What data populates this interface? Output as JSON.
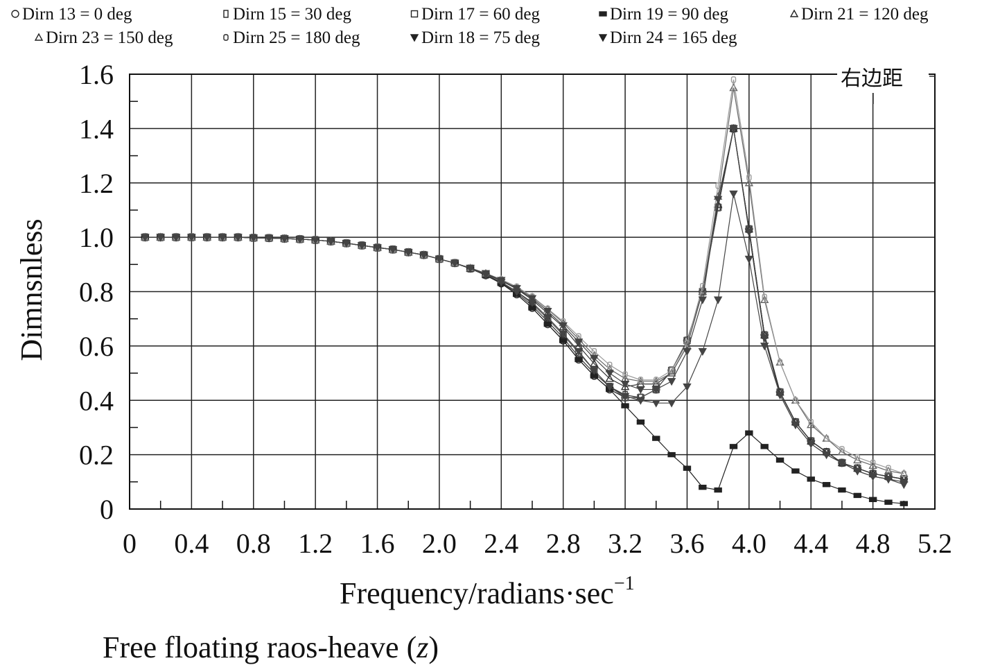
{
  "chart_data": {
    "type": "line",
    "ylabel": "Dimnsnless",
    "xlabel": {
      "main": "Frequency/radians·sec",
      "sup": "−1"
    },
    "caption": {
      "prefix": "Free floating raos-heave (",
      "italic": "z",
      "suffix": ")"
    },
    "annotation": "右边距",
    "xlim": [
      0,
      5.2
    ],
    "ylim": [
      0,
      1.6
    ],
    "x_ticks": [
      "0",
      "0.4",
      "0.8",
      "1.2",
      "1.6",
      "2.0",
      "2.4",
      "2.8",
      "3.2",
      "3.6",
      "4.0",
      "4.4",
      "4.8",
      "5.2"
    ],
    "y_ticks": [
      "0",
      "0.2",
      "0.4",
      "0.6",
      "0.8",
      "1.0",
      "1.2",
      "1.4",
      "1.6"
    ],
    "grid": true,
    "legend_position": "top",
    "x": [
      0.1,
      0.2,
      0.3,
      0.4,
      0.5,
      0.6,
      0.7,
      0.8,
      0.9,
      1.0,
      1.1,
      1.2,
      1.3,
      1.4,
      1.5,
      1.6,
      1.7,
      1.8,
      1.9,
      2.0,
      2.1,
      2.2,
      2.3,
      2.4,
      2.5,
      2.6,
      2.7,
      2.8,
      2.9,
      3.0,
      3.1,
      3.2,
      3.3,
      3.4,
      3.5,
      3.6,
      3.7,
      3.8,
      3.9,
      4.0,
      4.1,
      4.2,
      4.3,
      4.4,
      4.5,
      4.6,
      4.7,
      4.8,
      4.9,
      5.0
    ],
    "series": [
      {
        "name": "Dirn 13 = 0 deg",
        "marker": "circle",
        "color": "#222222",
        "values": [
          1.0,
          1.0,
          1.0,
          1.0,
          1.0,
          1.0,
          1.0,
          0.998,
          0.997,
          0.995,
          0.993,
          0.99,
          0.985,
          0.978,
          0.97,
          0.962,
          0.955,
          0.945,
          0.935,
          0.92,
          0.905,
          0.885,
          0.86,
          0.83,
          0.79,
          0.74,
          0.68,
          0.62,
          0.55,
          0.49,
          0.44,
          0.41,
          0.41,
          0.44,
          0.51,
          0.62,
          0.8,
          1.11,
          1.4,
          1.03,
          0.64,
          0.43,
          0.32,
          0.25,
          0.21,
          0.17,
          0.15,
          0.13,
          0.12,
          0.11
        ]
      },
      {
        "name": "Dirn 15 = 30 deg",
        "marker": "tallrect",
        "color": "#333333",
        "values": [
          1.0,
          1.0,
          1.0,
          1.0,
          1.0,
          1.0,
          1.0,
          0.998,
          0.997,
          0.995,
          0.993,
          0.99,
          0.985,
          0.978,
          0.97,
          0.962,
          0.955,
          0.945,
          0.935,
          0.92,
          0.905,
          0.885,
          0.862,
          0.833,
          0.795,
          0.748,
          0.69,
          0.63,
          0.56,
          0.5,
          0.45,
          0.42,
          0.41,
          0.44,
          0.51,
          0.62,
          0.8,
          1.11,
          1.4,
          1.03,
          0.64,
          0.43,
          0.32,
          0.25,
          0.21,
          0.17,
          0.15,
          0.13,
          0.12,
          0.11
        ]
      },
      {
        "name": "Dirn 17 = 60 deg",
        "marker": "square",
        "color": "#555555",
        "values": [
          1.0,
          1.0,
          1.0,
          1.0,
          1.0,
          1.0,
          1.0,
          0.998,
          0.997,
          0.995,
          0.993,
          0.99,
          0.985,
          0.978,
          0.97,
          0.962,
          0.955,
          0.945,
          0.935,
          0.92,
          0.905,
          0.885,
          0.862,
          0.835,
          0.8,
          0.755,
          0.7,
          0.64,
          0.575,
          0.51,
          0.45,
          0.41,
          0.41,
          0.44,
          0.51,
          0.62,
          0.8,
          1.11,
          1.4,
          1.03,
          0.64,
          0.43,
          0.32,
          0.25,
          0.21,
          0.17,
          0.15,
          0.13,
          0.12,
          0.11
        ]
      },
      {
        "name": "Dirn 19 = 90 deg",
        "marker": "flatrect",
        "color": "#222222",
        "values": [
          1.0,
          1.0,
          1.0,
          1.0,
          1.0,
          1.0,
          1.0,
          0.998,
          0.997,
          0.995,
          0.993,
          0.99,
          0.985,
          0.978,
          0.97,
          0.962,
          0.955,
          0.945,
          0.935,
          0.92,
          0.905,
          0.885,
          0.86,
          0.83,
          0.79,
          0.74,
          0.68,
          0.62,
          0.55,
          0.49,
          0.44,
          0.38,
          0.32,
          0.26,
          0.2,
          0.15,
          0.08,
          0.07,
          0.23,
          0.28,
          0.23,
          0.18,
          0.14,
          0.11,
          0.09,
          0.07,
          0.05,
          0.035,
          0.025,
          0.02
        ]
      },
      {
        "name": "Dirn 21 = 120 deg",
        "marker": "triangle",
        "color": "#333333",
        "values": [
          1.0,
          1.0,
          1.0,
          1.0,
          1.0,
          1.0,
          1.0,
          0.998,
          0.997,
          0.995,
          0.993,
          0.99,
          0.985,
          0.978,
          0.97,
          0.962,
          0.955,
          0.945,
          0.935,
          0.92,
          0.905,
          0.885,
          0.865,
          0.84,
          0.81,
          0.77,
          0.72,
          0.67,
          0.6,
          0.535,
          0.48,
          0.45,
          0.46,
          0.46,
          0.5,
          0.6,
          0.8,
          1.12,
          1.4,
          1.03,
          0.64,
          0.43,
          0.32,
          0.25,
          0.21,
          0.17,
          0.15,
          0.13,
          0.12,
          0.11
        ]
      },
      {
        "name": "Dirn 23 = 150 deg",
        "marker": "triangle",
        "color": "#666666",
        "values": [
          1.0,
          1.0,
          1.0,
          1.0,
          1.0,
          1.0,
          1.0,
          0.998,
          0.997,
          0.995,
          0.993,
          0.99,
          0.985,
          0.978,
          0.97,
          0.962,
          0.955,
          0.945,
          0.935,
          0.92,
          0.905,
          0.887,
          0.867,
          0.845,
          0.815,
          0.78,
          0.735,
          0.685,
          0.625,
          0.565,
          0.515,
          0.48,
          0.47,
          0.47,
          0.5,
          0.6,
          0.8,
          1.15,
          1.55,
          1.2,
          0.77,
          0.54,
          0.4,
          0.31,
          0.26,
          0.21,
          0.18,
          0.16,
          0.14,
          0.13
        ]
      },
      {
        "name": "Dirn 25 = 180 deg",
        "marker": "teardrop",
        "color": "#9a9a9a",
        "values": [
          1.0,
          1.0,
          1.0,
          1.0,
          1.0,
          1.0,
          1.0,
          0.998,
          0.997,
          0.995,
          0.993,
          0.99,
          0.985,
          0.978,
          0.97,
          0.962,
          0.955,
          0.945,
          0.935,
          0.92,
          0.905,
          0.887,
          0.867,
          0.845,
          0.818,
          0.782,
          0.737,
          0.69,
          0.635,
          0.58,
          0.53,
          0.495,
          0.475,
          0.475,
          0.51,
          0.61,
          0.82,
          1.19,
          1.58,
          1.22,
          0.78,
          0.54,
          0.4,
          0.32,
          0.26,
          0.22,
          0.19,
          0.17,
          0.15,
          0.13
        ]
      },
      {
        "name": "Dirn 18 = 75 deg",
        "marker": "invtriangle",
        "color": "#444444",
        "values": [
          1.0,
          1.0,
          1.0,
          1.0,
          1.0,
          1.0,
          1.0,
          0.998,
          0.997,
          0.995,
          0.993,
          0.99,
          0.985,
          0.978,
          0.97,
          0.962,
          0.955,
          0.945,
          0.935,
          0.92,
          0.905,
          0.885,
          0.862,
          0.835,
          0.8,
          0.76,
          0.705,
          0.645,
          0.58,
          0.51,
          0.45,
          0.415,
          0.4,
          0.39,
          0.39,
          0.45,
          0.58,
          0.77,
          1.16,
          0.92,
          0.6,
          0.42,
          0.31,
          0.24,
          0.2,
          0.17,
          0.14,
          0.12,
          0.11,
          0.1
        ]
      },
      {
        "name": "Dirn 24 = 165 deg",
        "marker": "invtriangle",
        "color": "#444444",
        "values": [
          1.0,
          1.0,
          1.0,
          1.0,
          1.0,
          1.0,
          1.0,
          0.998,
          0.997,
          0.995,
          0.993,
          0.99,
          0.985,
          0.978,
          0.97,
          0.962,
          0.955,
          0.945,
          0.935,
          0.92,
          0.905,
          0.887,
          0.867,
          0.842,
          0.812,
          0.775,
          0.728,
          0.675,
          0.615,
          0.555,
          0.5,
          0.46,
          0.44,
          0.44,
          0.47,
          0.58,
          0.77,
          1.14,
          1.4,
          1.02,
          0.63,
          0.42,
          0.31,
          0.24,
          0.2,
          0.17,
          0.14,
          0.12,
          0.11,
          0.09
        ]
      }
    ]
  }
}
